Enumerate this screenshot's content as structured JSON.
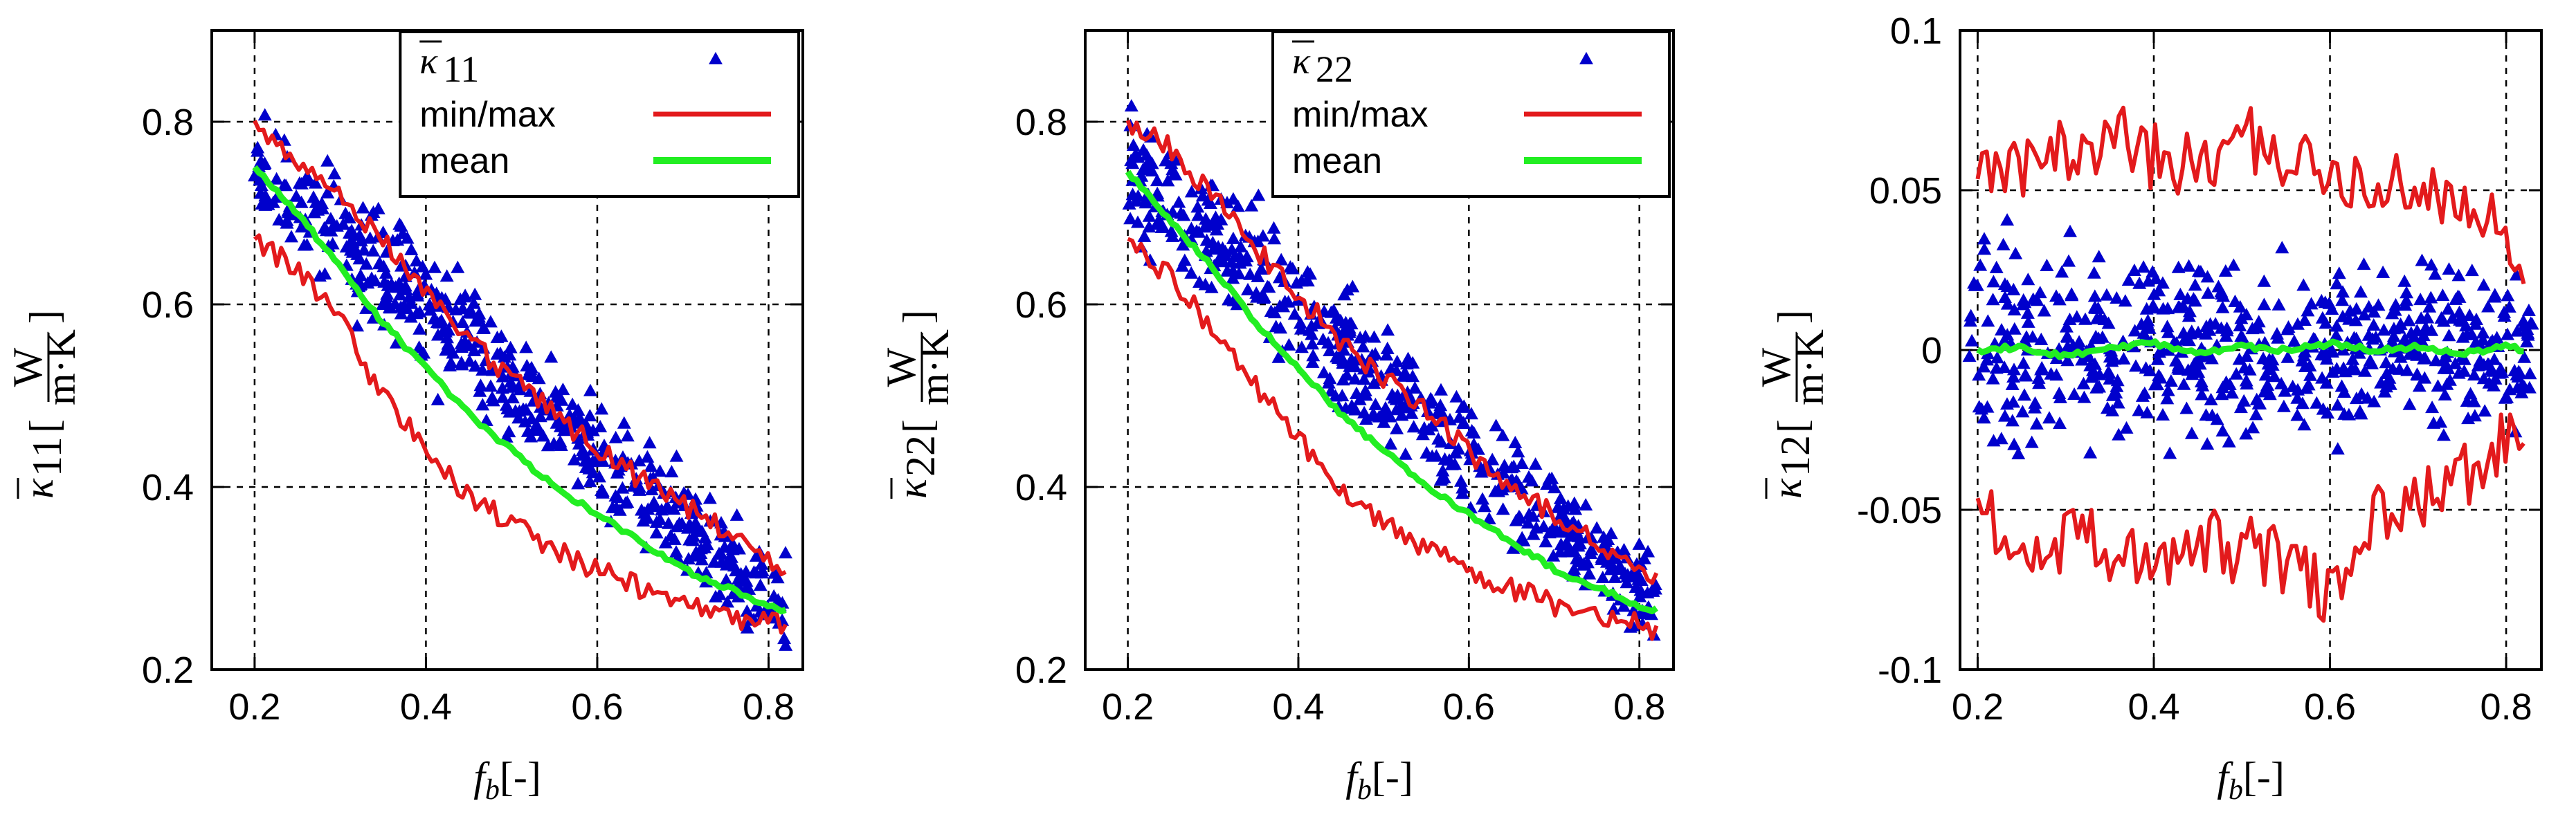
{
  "chart_data": [
    {
      "type": "scatter",
      "id": "k11",
      "xlabel": "f_b[-]",
      "ylabel": "κ̄11 [W/(m·K)]",
      "xlim": [
        0.15,
        0.84
      ],
      "ylim": [
        0.2,
        0.9
      ],
      "xticks": [
        "0.2",
        "0.4",
        "0.6",
        "0.8"
      ],
      "yticks": [
        "0.2",
        "0.4",
        "0.6",
        "0.8"
      ],
      "grid": true,
      "legend": {
        "placement": "top-right",
        "entries": [
          "κ̄11",
          "min/max",
          "mean"
        ]
      },
      "series": [
        {
          "name": "κ̄11",
          "kind": "scatter",
          "color": "#0000cc",
          "band": {
            "x0": 0.2,
            "x1": 0.82,
            "mean0": 0.75,
            "mean1": 0.265,
            "spread0": 0.045,
            "spread1": 0.03,
            "n": 520
          }
        },
        {
          "name": "max",
          "kind": "line",
          "color": "#e31a1c",
          "x": [
            0.2,
            0.25,
            0.3,
            0.35,
            0.4,
            0.45,
            0.5,
            0.55,
            0.6,
            0.65,
            0.7,
            0.75,
            0.8,
            0.82
          ],
          "values": [
            0.8,
            0.76,
            0.72,
            0.67,
            0.61,
            0.56,
            0.52,
            0.48,
            0.44,
            0.41,
            0.38,
            0.35,
            0.32,
            0.31
          ]
        },
        {
          "name": "min",
          "kind": "line",
          "color": "#e31a1c",
          "x": [
            0.2,
            0.25,
            0.3,
            0.35,
            0.4,
            0.45,
            0.5,
            0.55,
            0.6,
            0.65,
            0.7,
            0.75,
            0.8,
            0.82
          ],
          "values": [
            0.67,
            0.64,
            0.58,
            0.5,
            0.44,
            0.39,
            0.36,
            0.33,
            0.31,
            0.29,
            0.27,
            0.26,
            0.25,
            0.25
          ]
        },
        {
          "name": "mean",
          "kind": "line",
          "color": "#22ee22",
          "x": [
            0.2,
            0.25,
            0.3,
            0.35,
            0.4,
            0.45,
            0.5,
            0.55,
            0.6,
            0.65,
            0.7,
            0.75,
            0.8,
            0.82
          ],
          "values": [
            0.75,
            0.7,
            0.64,
            0.58,
            0.53,
            0.48,
            0.44,
            0.4,
            0.37,
            0.34,
            0.31,
            0.29,
            0.27,
            0.265
          ]
        }
      ]
    },
    {
      "type": "scatter",
      "id": "k22",
      "xlabel": "f_b[-]",
      "ylabel": "κ̄22 [W/(m·K)]",
      "xlim": [
        0.15,
        0.84
      ],
      "ylim": [
        0.2,
        0.9
      ],
      "xticks": [
        "0.2",
        "0.4",
        "0.6",
        "0.8"
      ],
      "yticks": [
        "0.2",
        "0.4",
        "0.6",
        "0.8"
      ],
      "grid": true,
      "legend": {
        "placement": "top-right",
        "entries": [
          "κ̄22",
          "min/max",
          "mean"
        ]
      },
      "series": [
        {
          "name": "κ̄22",
          "kind": "scatter",
          "color": "#0000cc",
          "band": {
            "x0": 0.2,
            "x1": 0.82,
            "mean0": 0.745,
            "mean1": 0.265,
            "spread0": 0.045,
            "spread1": 0.03,
            "n": 520
          }
        },
        {
          "name": "max",
          "kind": "line",
          "color": "#e31a1c",
          "x": [
            0.2,
            0.25,
            0.3,
            0.35,
            0.4,
            0.45,
            0.5,
            0.55,
            0.6,
            0.65,
            0.7,
            0.75,
            0.8,
            0.82
          ],
          "values": [
            0.8,
            0.77,
            0.72,
            0.66,
            0.61,
            0.56,
            0.52,
            0.48,
            0.44,
            0.4,
            0.37,
            0.34,
            0.31,
            0.3
          ]
        },
        {
          "name": "min",
          "kind": "line",
          "color": "#e31a1c",
          "x": [
            0.2,
            0.25,
            0.3,
            0.35,
            0.4,
            0.45,
            0.5,
            0.55,
            0.6,
            0.65,
            0.7,
            0.75,
            0.8,
            0.82
          ],
          "values": [
            0.67,
            0.63,
            0.57,
            0.51,
            0.45,
            0.4,
            0.36,
            0.33,
            0.31,
            0.29,
            0.27,
            0.26,
            0.25,
            0.24
          ]
        },
        {
          "name": "mean",
          "kind": "line",
          "color": "#22ee22",
          "x": [
            0.2,
            0.25,
            0.3,
            0.35,
            0.4,
            0.45,
            0.5,
            0.55,
            0.6,
            0.65,
            0.7,
            0.75,
            0.8,
            0.82
          ],
          "values": [
            0.745,
            0.69,
            0.64,
            0.58,
            0.53,
            0.48,
            0.44,
            0.4,
            0.37,
            0.34,
            0.31,
            0.29,
            0.27,
            0.265
          ]
        }
      ]
    },
    {
      "type": "scatter",
      "id": "k12",
      "xlabel": "f_b[-]",
      "ylabel": "κ̄12 [W/(m·K)]",
      "xlim": [
        0.18,
        0.84
      ],
      "ylim": [
        -0.1,
        0.1
      ],
      "xticks": [
        "0.2",
        "0.4",
        "0.6",
        "0.8"
      ],
      "yticks": [
        "-0.1",
        "-0.05",
        "0",
        "0.05",
        "0.1"
      ],
      "grid": true,
      "legend": null,
      "series": [
        {
          "name": "κ̄12",
          "kind": "scatter",
          "color": "#0000cc",
          "band": {
            "x0": 0.19,
            "x1": 0.83,
            "mean0": 0.0,
            "mean1": 0.0,
            "spread0": 0.02,
            "spread1": 0.015,
            "n": 600
          }
        },
        {
          "name": "max",
          "kind": "line",
          "color": "#e31a1c",
          "x": [
            0.2,
            0.25,
            0.3,
            0.35,
            0.4,
            0.45,
            0.5,
            0.55,
            0.6,
            0.65,
            0.7,
            0.75,
            0.8,
            0.82
          ],
          "values": [
            0.052,
            0.055,
            0.062,
            0.068,
            0.06,
            0.058,
            0.066,
            0.06,
            0.055,
            0.052,
            0.05,
            0.045,
            0.04,
            0.03
          ]
        },
        {
          "name": "min",
          "kind": "line",
          "color": "#e31a1c",
          "x": [
            0.2,
            0.25,
            0.3,
            0.35,
            0.4,
            0.45,
            0.5,
            0.55,
            0.6,
            0.65,
            0.7,
            0.75,
            0.8,
            0.82
          ],
          "values": [
            -0.048,
            -0.07,
            -0.058,
            -0.062,
            -0.068,
            -0.058,
            -0.063,
            -0.065,
            -0.078,
            -0.05,
            -0.045,
            -0.04,
            -0.028,
            -0.022
          ]
        },
        {
          "name": "mean",
          "kind": "line",
          "color": "#22ee22",
          "x": [
            0.2,
            0.25,
            0.3,
            0.35,
            0.4,
            0.45,
            0.5,
            0.55,
            0.6,
            0.65,
            0.7,
            0.75,
            0.8,
            0.82
          ],
          "values": [
            0.0,
            0.001,
            -0.002,
            0.001,
            0.002,
            -0.001,
            0.001,
            0.0,
            0.002,
            0.0,
            0.001,
            -0.001,
            0.001,
            0.0
          ]
        }
      ]
    }
  ]
}
